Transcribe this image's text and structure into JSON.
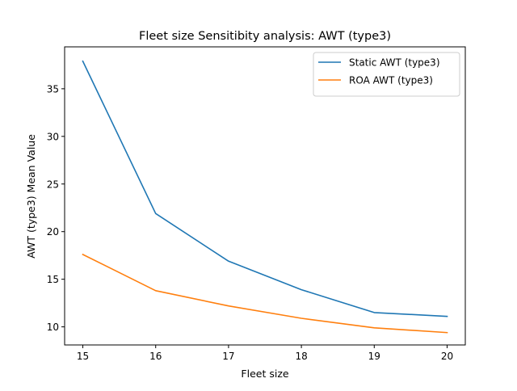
{
  "chart_data": {
    "type": "line",
    "title": "Fleet size Sensitibity analysis: AWT (type3)",
    "xlabel": "Fleet size",
    "ylabel": "AWT (type3) Mean Value",
    "x": [
      15,
      16,
      17,
      18,
      19,
      20
    ],
    "xlim": [
      14.75,
      20.25
    ],
    "ylim": [
      8.1,
      39.4
    ],
    "xticks": [
      15,
      16,
      17,
      18,
      19,
      20
    ],
    "yticks": [
      10,
      15,
      20,
      25,
      30,
      35
    ],
    "grid": false,
    "legend_position": "top-right",
    "series": [
      {
        "name": "Static AWT (type3)",
        "color": "#1f77b4",
        "values": [
          37.9,
          21.9,
          16.9,
          13.9,
          11.5,
          11.1
        ]
      },
      {
        "name": "ROA AWT (type3)",
        "color": "#ff7f0e",
        "values": [
          17.6,
          13.8,
          12.2,
          10.9,
          9.9,
          9.4
        ]
      }
    ]
  }
}
